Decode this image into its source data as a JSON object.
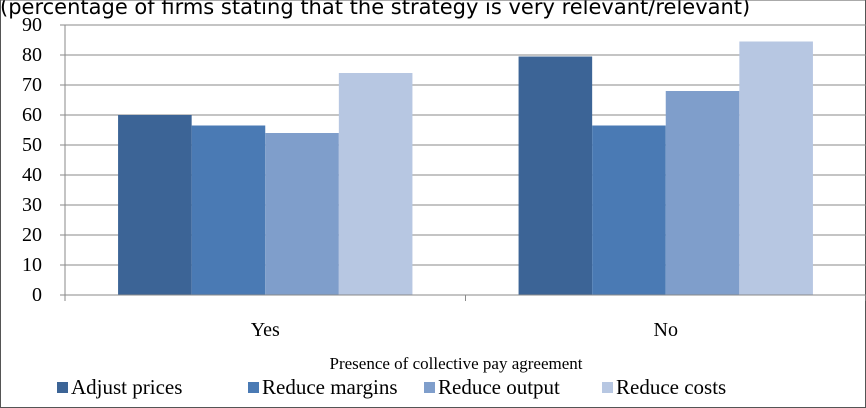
{
  "chart_data": {
    "type": "bar",
    "caption": "(percentage of firms stating that the strategy is very relevant/relevant)",
    "xlabel": "Presence of collective pay agreement",
    "ylabel": "",
    "ylim": [
      0,
      90
    ],
    "yticks": [
      "0",
      "10",
      "20",
      "30",
      "40",
      "50",
      "60",
      "70",
      "80",
      "90"
    ],
    "categories": [
      "Yes",
      "No"
    ],
    "series": [
      {
        "name": "Adjust prices",
        "values": [
          60,
          79.5
        ],
        "color": "#3c6496"
      },
      {
        "name": "Reduce margins",
        "values": [
          56.5,
          56.5
        ],
        "color": "#4a7ab4"
      },
      {
        "name": "Reduce output",
        "values": [
          54,
          68
        ],
        "color": "#7f9ecb"
      },
      {
        "name": "Reduce costs",
        "values": [
          74,
          84.5
        ],
        "color": "#b7c7e2"
      }
    ],
    "grid": true,
    "legend_position": "bottom"
  }
}
